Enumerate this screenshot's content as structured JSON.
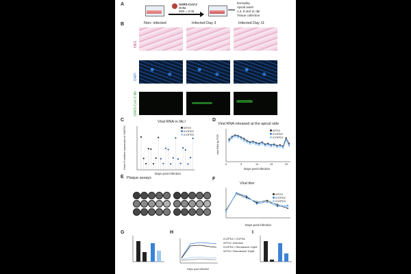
{
  "panels": {
    "A": "A",
    "B": "B",
    "C": "C",
    "D": "D",
    "E": "E",
    "F": "F",
    "G": "G",
    "H": "H",
    "I": "I"
  },
  "panelA": {
    "virus": "SARS-CoV-2",
    "variant": "Delta",
    "moi": "MOI = 0.05",
    "right_text": [
      "Everyday",
      "Apical wash",
      "1,3, 8 and 11 dpi",
      "Tissue collection"
    ]
  },
  "panelB": {
    "col_headers": [
      "Non- infected",
      "Infected Day 3",
      "Infected Day 11"
    ],
    "row_labels": [
      "HES",
      "DAPI",
      "SARS-CoV-2 Nb"
    ]
  },
  "panelC": {
    "title": "Viral RNA in IALI",
    "ylabel": "Gene N relative expression to GAPDH",
    "xlabel": "Days post infection",
    "legend": [
      "WT03",
      "ICOPD2",
      "ICOPD3"
    ]
  },
  "panelD": {
    "title": "Viral RNA released at the apical side",
    "ylabel": "viral RNA by PCR",
    "xlabel": "Days post infection",
    "legend": [
      "WT03",
      "ICOPD2",
      "ICOPD3"
    ],
    "xticks": [
      "0",
      "5",
      "10",
      "15",
      "20"
    ]
  },
  "panelE": {
    "title": "Plaque assays"
  },
  "panelF": {
    "title": "Viral titer",
    "xlabel": "Days post infection",
    "legend": [
      "WT03",
      "ICOPD2",
      "ICOPD3"
    ]
  },
  "panelH": {
    "xlabel": "Days post infection",
    "legend": [
      "ICOPD2 / COPD2",
      "WT03 / Infection",
      "ICOPD2 / Remdesivir 10µM",
      "WT03 / Remdesivir 10µM"
    ]
  },
  "colors": {
    "wt": "#222222",
    "icopd2": "#3b82d6",
    "icopd3": "#9cc8f2"
  },
  "chart_data": [
    {
      "type": "scatter",
      "title": "Viral RNA released at the apical side",
      "xlabel": "Days post infection",
      "series": [
        {
          "name": "WT03",
          "x": [
            1,
            2,
            3,
            4,
            5,
            6,
            7,
            8,
            9,
            10,
            11,
            12,
            13,
            14,
            15,
            16,
            17,
            18,
            19,
            20,
            21
          ],
          "values": [
            3.2,
            3.6,
            3.8,
            3.7,
            3.5,
            3.3,
            3.0,
            2.8,
            2.9,
            2.7,
            2.6,
            2.8,
            2.5,
            2.6,
            2.4,
            2.5,
            2.3,
            2.4,
            2.2,
            3.4,
            2.6
          ]
        },
        {
          "name": "ICOPD2",
          "x": [
            1,
            2,
            3,
            4,
            5,
            6,
            7,
            8,
            9,
            10,
            11,
            12,
            13,
            14,
            15,
            16,
            17,
            18,
            19,
            20,
            21
          ],
          "values": [
            3.0,
            3.5,
            3.7,
            3.6,
            3.4,
            3.1,
            2.9,
            2.7,
            2.8,
            2.6,
            2.5,
            2.7,
            2.4,
            2.5,
            2.3,
            2.4,
            2.2,
            2.3,
            2.1,
            3.2,
            2.4
          ]
        },
        {
          "name": "ICOPD3",
          "x": [
            1,
            2,
            3,
            4,
            5,
            6,
            7,
            8,
            9,
            10,
            11,
            12,
            13,
            14,
            15,
            16,
            17,
            18,
            19,
            20,
            21
          ],
          "values": [
            2.8,
            3.3,
            3.5,
            3.4,
            3.2,
            2.9,
            2.7,
            2.5,
            2.6,
            2.4,
            2.3,
            2.5,
            2.2,
            2.3,
            2.1,
            2.2,
            2.0,
            2.1,
            1.9,
            3.0,
            2.2
          ]
        }
      ]
    },
    {
      "type": "line",
      "title": "Viral titer",
      "xlabel": "Days post infection",
      "series": [
        {
          "name": "WT03",
          "x": [
            0,
            2,
            4,
            6,
            8,
            10,
            12
          ],
          "values": [
            1.2,
            3.8,
            3.2,
            2.4,
            2.7,
            2.0,
            1.5
          ]
        },
        {
          "name": "ICOPD2",
          "x": [
            0,
            2,
            4,
            6,
            8,
            10,
            12
          ],
          "values": [
            1.0,
            3.9,
            3.4,
            2.2,
            2.5,
            1.8,
            1.9
          ]
        },
        {
          "name": "ICOPD3",
          "x": [
            0,
            2,
            4,
            6,
            8,
            10,
            12
          ],
          "values": [
            1.1,
            3.7,
            3.0,
            2.6,
            2.4,
            2.2,
            1.6
          ]
        }
      ]
    }
  ]
}
